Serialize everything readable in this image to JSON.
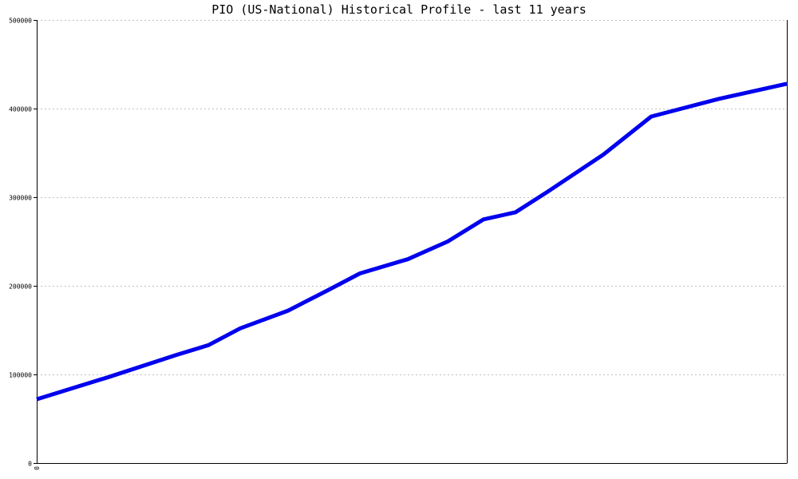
{
  "chart_data": {
    "type": "line",
    "title": "PIO (US-National) Historical Profile - last 11 years",
    "xlabel": "",
    "ylabel": "",
    "x_tick_labels": [
      "0"
    ],
    "ylim": [
      0,
      500000
    ],
    "y_ticks": [
      0,
      100000,
      200000,
      300000,
      400000,
      500000
    ],
    "y_tick_labels": [
      "0",
      "100000",
      "200000",
      "300000",
      "400000",
      "500000"
    ],
    "grid": "horizontal-dotted",
    "legend": "none",
    "line_color": "#0000ee",
    "grid_color": "#c0c0c0",
    "series": [
      {
        "values": [
          72000,
          97000,
          122000,
          133000,
          152000,
          172000,
          195000,
          214000,
          230000,
          250000,
          275000,
          283000,
          306000,
          348000,
          391000,
          411000,
          428000
        ]
      }
    ],
    "x_positions": [
      0,
      0.0958,
      0.1862,
      0.2287,
      0.2713,
      0.3351,
      0.3883,
      0.4309,
      0.4947,
      0.5479,
      0.5957,
      0.6383,
      0.6809,
      0.7553,
      0.8191,
      0.9096,
      1.0
    ]
  }
}
